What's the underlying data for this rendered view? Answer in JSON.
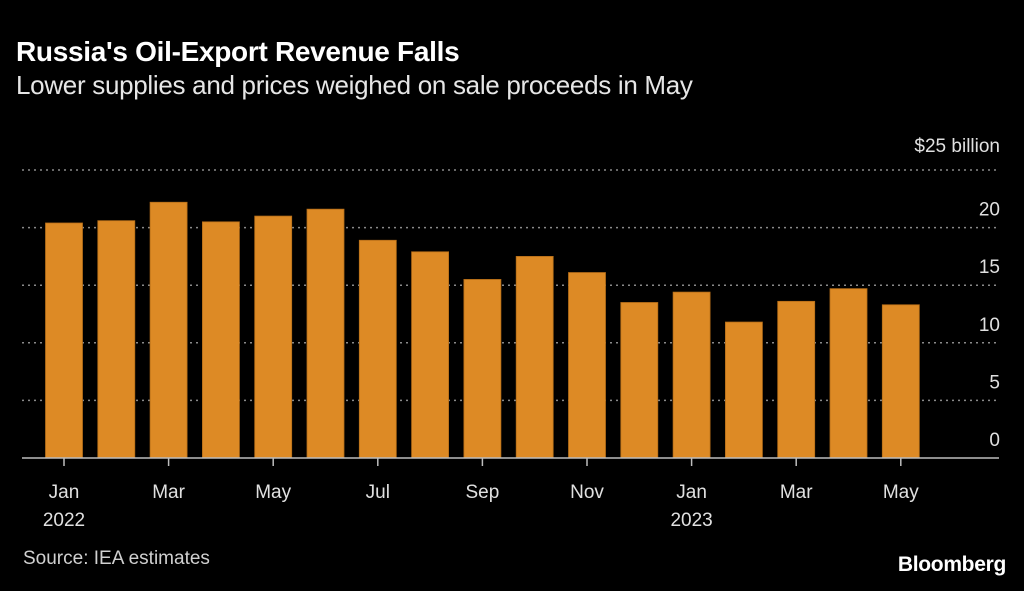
{
  "chart_data": {
    "type": "bar",
    "title": "Russia's Oil-Export Revenue Falls",
    "subtitle": "Lower supplies and prices weighed on sale proceeds in May",
    "ylabel": "$ billion",
    "unit_label": "$25 billion",
    "ylim": [
      0,
      25
    ],
    "yticks": [
      0,
      5,
      10,
      15,
      20
    ],
    "grid": true,
    "bar_color": "#dd8a25",
    "categories": [
      "Jan 2022",
      "Feb 2022",
      "Mar 2022",
      "Apr 2022",
      "May 2022",
      "Jun 2022",
      "Jul 2022",
      "Aug 2022",
      "Sep 2022",
      "Oct 2022",
      "Nov 2022",
      "Dec 2022",
      "Jan 2023",
      "Feb 2023",
      "Mar 2023",
      "Apr 2023",
      "May 2023"
    ],
    "values": [
      20.4,
      20.6,
      22.2,
      20.5,
      21.0,
      21.6,
      18.9,
      17.9,
      15.5,
      17.5,
      16.1,
      13.5,
      14.4,
      11.8,
      13.6,
      14.7,
      13.3
    ],
    "xtick_labels": [
      {
        "index": 0,
        "month": "Jan",
        "year": "2022"
      },
      {
        "index": 2,
        "month": "Mar",
        "year": ""
      },
      {
        "index": 4,
        "month": "May",
        "year": ""
      },
      {
        "index": 6,
        "month": "Jul",
        "year": ""
      },
      {
        "index": 8,
        "month": "Sep",
        "year": ""
      },
      {
        "index": 10,
        "month": "Nov",
        "year": ""
      },
      {
        "index": 12,
        "month": "Jan",
        "year": "2023"
      },
      {
        "index": 14,
        "month": "Mar",
        "year": ""
      },
      {
        "index": 16,
        "month": "May",
        "year": ""
      }
    ]
  },
  "footer": {
    "source": "Source: IEA estimates",
    "brand": "Bloomberg"
  }
}
